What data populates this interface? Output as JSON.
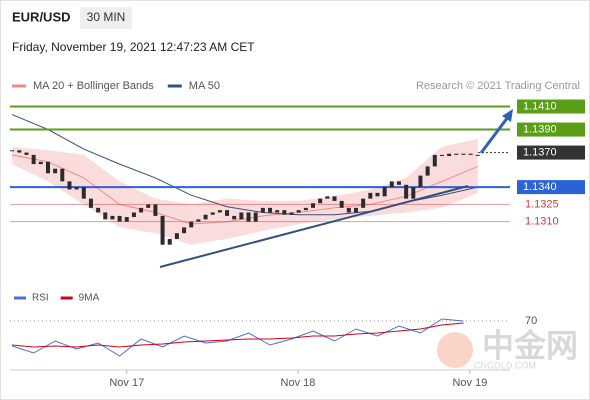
{
  "header": {
    "symbol": "EUR/USD",
    "interval": "30 MIN",
    "timestamp": "Friday, November 19, 2021 12:47:23 AM CET"
  },
  "watermark": {
    "logo": "中金网",
    "site": "CNGOLD.COM"
  },
  "chart_data": [
    {
      "type": "candlestick",
      "credit": "Research © 2021 Trading Central",
      "closes": [
        1.1372,
        1.137,
        1.1368,
        1.136,
        1.1362,
        1.1352,
        1.1356,
        1.1345,
        1.1338,
        1.134,
        1.133,
        1.1322,
        1.1318,
        1.1312,
        1.1315,
        1.131,
        1.1314,
        1.1318,
        1.1322,
        1.1325,
        1.1315,
        1.129,
        1.1295,
        1.13,
        1.1305,
        1.131,
        1.1312,
        1.1316,
        1.1318,
        1.132,
        1.1315,
        1.1312,
        1.1318,
        1.131,
        1.1318,
        1.1322,
        1.1318,
        1.132,
        1.1316,
        1.1318,
        1.132,
        1.1322,
        1.1326,
        1.133,
        1.1332,
        1.1328,
        1.1322,
        1.1318,
        1.1322,
        1.133,
        1.1335,
        1.1332,
        1.134,
        1.1345,
        1.1342,
        1.133,
        1.134,
        1.135,
        1.1358,
        1.1368,
        1.1367,
        1.1369,
        1.1368,
        1.1369,
        1.1368,
        1.1368
      ],
      "candle_color": "#2b2b2b",
      "series": [
        {
          "name": "MA 20 + Bollinger Bands",
          "color": "#f08a8a",
          "band_color": "#fbdcdc",
          "x": [
            0,
            5,
            10,
            15,
            20,
            25,
            30,
            35,
            40,
            45,
            50,
            55,
            60,
            65
          ],
          "values": [
            1.1368,
            1.1362,
            1.1348,
            1.1325,
            1.1318,
            1.1308,
            1.131,
            1.1315,
            1.1318,
            1.1322,
            1.1325,
            1.1332,
            1.1345,
            1.1358
          ],
          "upper": [
            1.1375,
            1.1372,
            1.1368,
            1.1345,
            1.133,
            1.1325,
            1.133,
            1.1328,
            1.1328,
            1.1332,
            1.1338,
            1.1348,
            1.1375,
            1.1382
          ],
          "lower": [
            1.136,
            1.1345,
            1.1325,
            1.1305,
            1.13,
            1.129,
            1.1295,
            1.1302,
            1.1308,
            1.1312,
            1.1315,
            1.1318,
            1.1322,
            1.1335
          ]
        },
        {
          "name": "MA 50",
          "color": "#34507e",
          "x": [
            0,
            5,
            10,
            15,
            20,
            25,
            30,
            35,
            40,
            45,
            50,
            55,
            60,
            65
          ],
          "values": [
            1.1403,
            1.139,
            1.1373,
            1.136,
            1.1348,
            1.1333,
            1.1323,
            1.1318,
            1.1316,
            1.1316,
            1.1319,
            1.1327,
            1.1333,
            1.134
          ]
        }
      ],
      "levels": [
        {
          "value": 1.141,
          "label": "1.1410",
          "color": "#5a9e17",
          "boxed": true
        },
        {
          "value": 1.139,
          "label": "1.1390",
          "color": "#5a9e17",
          "boxed": true
        },
        {
          "value": 1.137,
          "label": "1.1370",
          "color": "#333333",
          "boxed": true,
          "dotted": true
        },
        {
          "value": 1.134,
          "label": "1.1340",
          "color": "#2a62d8",
          "boxed": true
        },
        {
          "value": 1.1325,
          "label": "1.1325",
          "color": "#d9383a",
          "boxed": false
        },
        {
          "value": 1.131,
          "label": "1.1310",
          "color": "#d9383a",
          "boxed": false
        }
      ],
      "xlim": [
        -0.3,
        69.5
      ],
      "ylim": [
        1.1255,
        1.142
      ],
      "xticks": [
        {
          "value": 16,
          "label": "Nov 17"
        },
        {
          "value": 39.9,
          "label": "Nov 18"
        },
        {
          "value": 63.9,
          "label": "Nov 19"
        }
      ]
    },
    {
      "type": "line",
      "series": [
        {
          "name": "RSI",
          "color": "#4a6fd6",
          "x": [
            0,
            3,
            6,
            9,
            12,
            15,
            18,
            21,
            24,
            27,
            30,
            33,
            36,
            39,
            42,
            45,
            48,
            51,
            54,
            57,
            60,
            63
          ],
          "values": [
            45,
            38,
            50,
            42,
            48,
            35,
            52,
            44,
            55,
            48,
            50,
            58,
            46,
            52,
            60,
            50,
            62,
            55,
            65,
            58,
            72,
            70
          ]
        },
        {
          "name": "9MA",
          "color": "#d0021b",
          "x": [
            0,
            3,
            6,
            9,
            12,
            15,
            18,
            21,
            24,
            27,
            30,
            33,
            36,
            39,
            42,
            45,
            48,
            51,
            54,
            57,
            60,
            63
          ],
          "values": [
            46,
            44,
            45,
            44,
            46,
            44,
            46,
            47,
            49,
            50,
            51,
            52,
            52,
            53,
            55,
            55,
            57,
            58,
            60,
            62,
            66,
            68
          ]
        }
      ],
      "xlim": [
        -0.3,
        69.5
      ],
      "ylim": [
        20,
        82
      ],
      "yticks": [
        70
      ]
    }
  ]
}
